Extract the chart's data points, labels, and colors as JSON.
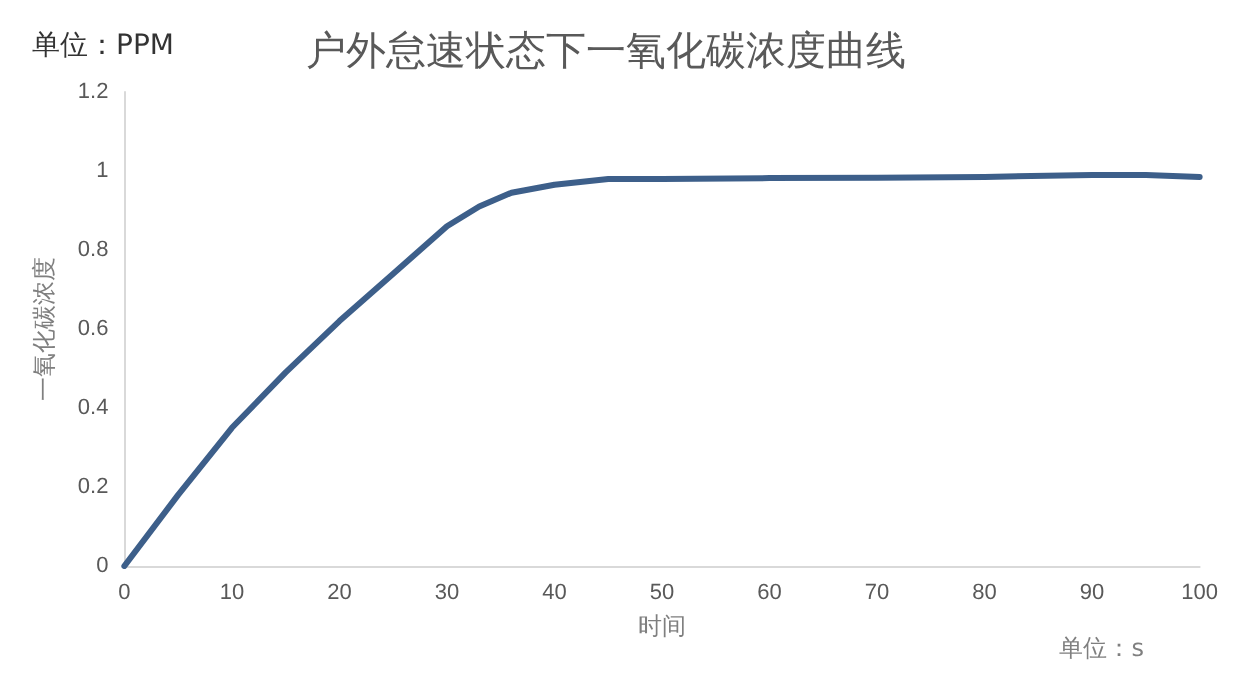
{
  "chart_data": {
    "type": "line",
    "title": "户外怠速状态下一氧化碳浓度曲线",
    "xlabel": "时间",
    "ylabel": "一氧化碳浓度",
    "annotations": [
      "单位：PPM",
      "单位：s"
    ],
    "x": [
      0,
      5,
      10,
      15,
      20,
      25,
      30,
      33,
      36,
      40,
      45,
      50,
      60,
      70,
      80,
      90,
      95,
      100
    ],
    "series": [
      {
        "color": "#3d5f8a",
        "values": [
          0,
          0.18,
          0.35,
          0.49,
          0.62,
          0.74,
          0.86,
          0.91,
          0.945,
          0.965,
          0.98,
          0.98,
          0.982,
          0.983,
          0.985,
          0.99,
          0.99,
          0.985
        ]
      }
    ],
    "xlim": [
      0,
      100
    ],
    "xticks": [
      0,
      10,
      20,
      30,
      40,
      50,
      60,
      70,
      80,
      90,
      100
    ],
    "ylim": [
      0,
      1.2
    ],
    "yticks": [
      0,
      0.2,
      0.4,
      0.6,
      0.8,
      1,
      1.2
    ],
    "grid": false,
    "marker": "none",
    "line_style": "solid"
  }
}
